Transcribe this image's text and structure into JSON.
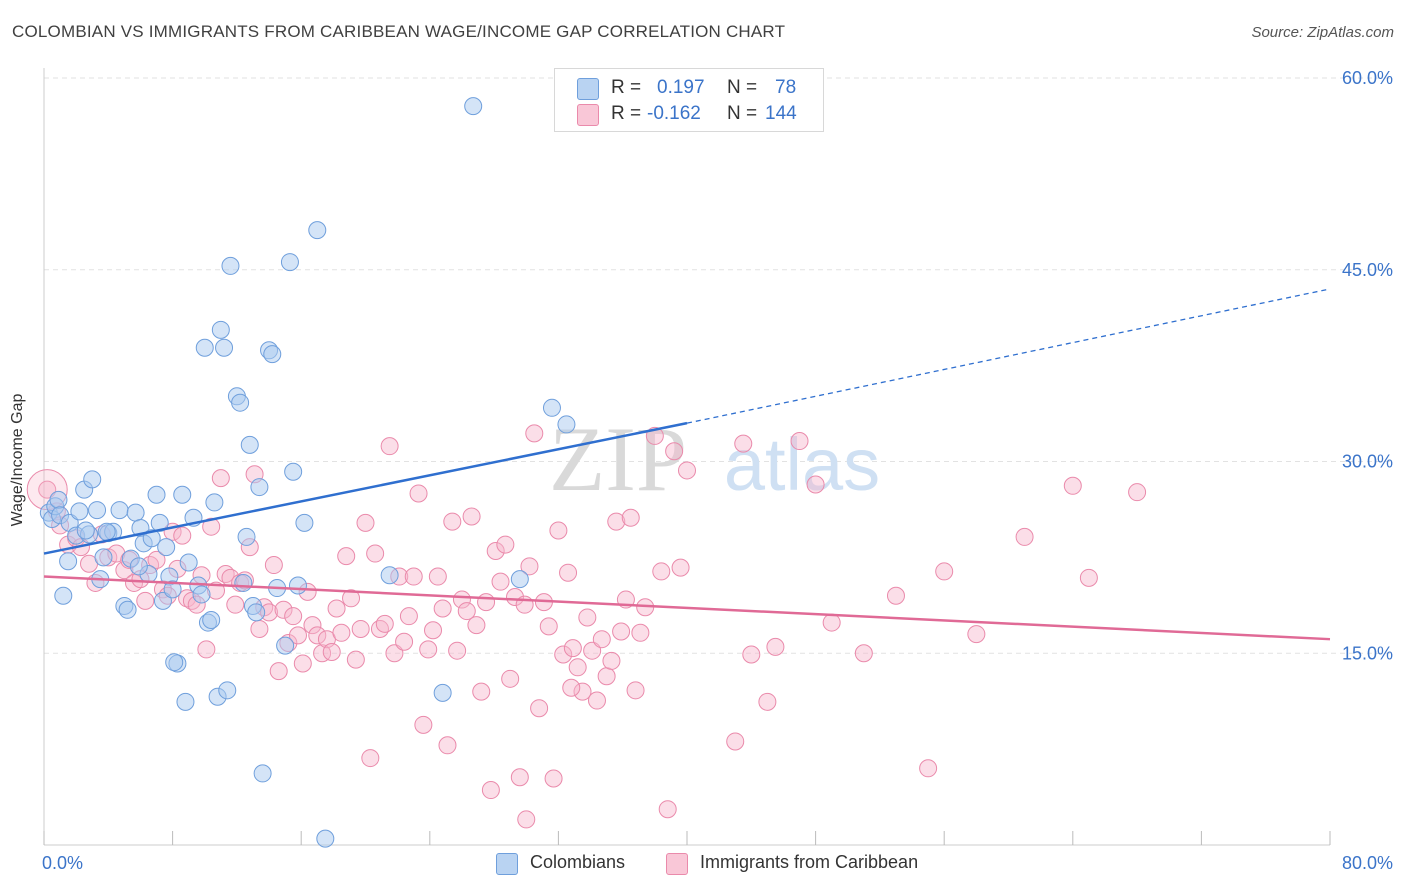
{
  "header": {
    "title": "COLOMBIAN VS IMMIGRANTS FROM CARIBBEAN WAGE/INCOME GAP CORRELATION CHART",
    "source": "Source: ZipAtlas.com"
  },
  "legend": {
    "rows": [
      {
        "r_label": "R =",
        "r_value": "0.197",
        "n_label": "N =",
        "n_value": "78"
      },
      {
        "r_label": "R =",
        "r_value": "-0.162",
        "n_label": "N =",
        "n_value": "144"
      }
    ],
    "bottom": [
      "Colombians",
      "Immigrants from Caribbean"
    ]
  },
  "watermark": {
    "zip": "ZIP",
    "atlas": "atlas"
  },
  "colors": {
    "blue_fill": "#a9c9f0",
    "blue_stroke": "#6f9fdc",
    "blue_line": "#2f6fcf",
    "pink_fill": "#f7b6cb",
    "pink_stroke": "#ea8aab",
    "pink_line": "#e06a96",
    "axis_text": "#3b74c9",
    "grid": "#e2e2e2"
  },
  "chart_data": {
    "type": "scatter",
    "title": "COLOMBIAN VS IMMIGRANTS FROM CARIBBEAN WAGE/INCOME GAP CORRELATION CHART",
    "xlabel": "",
    "ylabel": "Wage/Income Gap",
    "xlim": [
      0,
      80
    ],
    "ylim": [
      0,
      60
    ],
    "x_tick_labels": [
      "0.0%",
      "80.0%"
    ],
    "y_ticks": [
      15,
      30,
      45,
      60
    ],
    "y_tick_labels": [
      "15.0%",
      "30.0%",
      "45.0%",
      "60.0%"
    ],
    "grid": true,
    "legend_position": "top-center",
    "series": [
      {
        "name": "Colombians",
        "r": 0.197,
        "n": 78,
        "trend": {
          "x0": 0,
          "y0": 22.8,
          "x1": 40,
          "y1": 33.0,
          "dashed_to_x": 80,
          "dashed_to_y": 43.5
        },
        "points": [
          [
            0.3,
            26.0
          ],
          [
            0.5,
            25.5
          ],
          [
            0.7,
            26.5
          ],
          [
            0.9,
            27.0
          ],
          [
            1.0,
            25.8
          ],
          [
            1.2,
            19.5
          ],
          [
            1.5,
            22.2
          ],
          [
            1.6,
            25.2
          ],
          [
            2.0,
            24.2
          ],
          [
            2.2,
            26.1
          ],
          [
            2.5,
            27.8
          ],
          [
            2.8,
            24.3
          ],
          [
            3.0,
            28.6
          ],
          [
            3.3,
            26.2
          ],
          [
            3.5,
            20.8
          ],
          [
            3.7,
            22.5
          ],
          [
            4.0,
            24.4
          ],
          [
            4.3,
            24.5
          ],
          [
            4.7,
            26.2
          ],
          [
            5.0,
            18.7
          ],
          [
            5.2,
            18.4
          ],
          [
            5.4,
            22.4
          ],
          [
            5.7,
            26.0
          ],
          [
            6.0,
            24.8
          ],
          [
            6.2,
            23.6
          ],
          [
            6.5,
            21.2
          ],
          [
            6.7,
            24.0
          ],
          [
            7.0,
            27.4
          ],
          [
            7.2,
            25.2
          ],
          [
            7.4,
            19.1
          ],
          [
            7.6,
            23.3
          ],
          [
            7.8,
            21.0
          ],
          [
            8.0,
            20.0
          ],
          [
            8.3,
            14.2
          ],
          [
            8.6,
            27.4
          ],
          [
            8.8,
            11.2
          ],
          [
            9.0,
            22.1
          ],
          [
            9.3,
            25.6
          ],
          [
            9.6,
            20.3
          ],
          [
            9.8,
            19.6
          ],
          [
            10.0,
            38.9
          ],
          [
            10.2,
            17.4
          ],
          [
            10.4,
            17.6
          ],
          [
            10.6,
            26.8
          ],
          [
            10.8,
            11.6
          ],
          [
            11.0,
            40.3
          ],
          [
            11.2,
            38.9
          ],
          [
            11.4,
            12.1
          ],
          [
            11.6,
            45.3
          ],
          [
            12.0,
            35.1
          ],
          [
            12.2,
            34.6
          ],
          [
            12.4,
            20.5
          ],
          [
            12.6,
            24.1
          ],
          [
            12.8,
            31.3
          ],
          [
            13.0,
            18.7
          ],
          [
            13.2,
            18.2
          ],
          [
            13.4,
            28.0
          ],
          [
            13.6,
            5.6
          ],
          [
            14.0,
            38.7
          ],
          [
            14.2,
            38.4
          ],
          [
            14.5,
            20.1
          ],
          [
            15.0,
            15.6
          ],
          [
            15.3,
            45.6
          ],
          [
            15.5,
            29.2
          ],
          [
            15.8,
            20.3
          ],
          [
            16.2,
            25.2
          ],
          [
            17.0,
            48.1
          ],
          [
            17.5,
            0.5
          ],
          [
            8.1,
            14.3
          ],
          [
            5.9,
            21.8
          ],
          [
            3.9,
            24.5
          ],
          [
            2.6,
            24.6
          ],
          [
            21.5,
            21.1
          ],
          [
            24.8,
            11.9
          ],
          [
            26.7,
            57.8
          ],
          [
            29.6,
            20.8
          ],
          [
            31.6,
            34.2
          ],
          [
            32.5,
            32.9
          ]
        ]
      },
      {
        "name": "Immigrants from Caribbean",
        "r": -0.162,
        "n": 144,
        "trend": {
          "x0": 0,
          "y0": 21.0,
          "x1": 80,
          "y1": 16.1
        },
        "points": [
          [
            0.2,
            27.8
          ],
          [
            0.8,
            26.1
          ],
          [
            1.0,
            25.0
          ],
          [
            1.5,
            23.5
          ],
          [
            2.0,
            24.0
          ],
          [
            2.3,
            23.3
          ],
          [
            2.8,
            22.0
          ],
          [
            3.2,
            20.5
          ],
          [
            3.6,
            24.3
          ],
          [
            4.0,
            22.5
          ],
          [
            4.5,
            22.8
          ],
          [
            5.0,
            21.5
          ],
          [
            5.3,
            22.3
          ],
          [
            5.6,
            20.5
          ],
          [
            6.0,
            20.8
          ],
          [
            6.3,
            19.1
          ],
          [
            6.6,
            21.9
          ],
          [
            7.0,
            22.3
          ],
          [
            7.4,
            20.0
          ],
          [
            7.7,
            19.5
          ],
          [
            8.0,
            24.5
          ],
          [
            8.3,
            21.6
          ],
          [
            8.6,
            24.2
          ],
          [
            8.9,
            19.3
          ],
          [
            9.2,
            19.1
          ],
          [
            9.5,
            18.8
          ],
          [
            9.8,
            21.1
          ],
          [
            10.1,
            15.3
          ],
          [
            10.4,
            24.9
          ],
          [
            10.7,
            19.9
          ],
          [
            11.0,
            28.7
          ],
          [
            11.3,
            21.2
          ],
          [
            11.6,
            20.9
          ],
          [
            11.9,
            18.8
          ],
          [
            12.2,
            20.5
          ],
          [
            12.5,
            20.7
          ],
          [
            12.8,
            23.3
          ],
          [
            13.1,
            29.0
          ],
          [
            13.4,
            16.9
          ],
          [
            13.7,
            18.6
          ],
          [
            14.0,
            18.2
          ],
          [
            14.3,
            21.9
          ],
          [
            14.6,
            13.6
          ],
          [
            14.9,
            18.4
          ],
          [
            15.2,
            15.8
          ],
          [
            15.5,
            17.9
          ],
          [
            15.8,
            16.4
          ],
          [
            16.1,
            14.2
          ],
          [
            16.4,
            19.8
          ],
          [
            16.7,
            17.2
          ],
          [
            17.0,
            16.4
          ],
          [
            17.3,
            15.0
          ],
          [
            17.6,
            16.1
          ],
          [
            17.9,
            15.1
          ],
          [
            18.2,
            18.5
          ],
          [
            18.5,
            16.6
          ],
          [
            18.8,
            22.6
          ],
          [
            19.1,
            19.3
          ],
          [
            19.4,
            14.5
          ],
          [
            19.7,
            16.9
          ],
          [
            20.0,
            25.2
          ],
          [
            20.3,
            6.8
          ],
          [
            20.6,
            22.8
          ],
          [
            20.9,
            16.9
          ],
          [
            21.2,
            17.3
          ],
          [
            21.5,
            31.2
          ],
          [
            21.8,
            15.0
          ],
          [
            22.1,
            21.0
          ],
          [
            22.4,
            15.9
          ],
          [
            22.7,
            17.9
          ],
          [
            23.0,
            21.0
          ],
          [
            23.3,
            27.5
          ],
          [
            23.6,
            9.4
          ],
          [
            23.9,
            15.3
          ],
          [
            24.2,
            16.8
          ],
          [
            24.5,
            21.0
          ],
          [
            24.8,
            18.5
          ],
          [
            25.1,
            7.8
          ],
          [
            25.4,
            25.3
          ],
          [
            25.7,
            15.2
          ],
          [
            26.0,
            19.2
          ],
          [
            26.3,
            18.3
          ],
          [
            26.6,
            25.7
          ],
          [
            26.9,
            17.2
          ],
          [
            27.2,
            12.0
          ],
          [
            27.5,
            19.0
          ],
          [
            27.8,
            4.3
          ],
          [
            28.1,
            23.0
          ],
          [
            28.4,
            20.6
          ],
          [
            28.7,
            23.5
          ],
          [
            29.0,
            13.0
          ],
          [
            29.3,
            19.4
          ],
          [
            29.6,
            5.3
          ],
          [
            29.9,
            18.8
          ],
          [
            30.2,
            21.8
          ],
          [
            30.5,
            32.2
          ],
          [
            30.8,
            10.7
          ],
          [
            31.1,
            19.0
          ],
          [
            31.4,
            17.1
          ],
          [
            31.7,
            5.2
          ],
          [
            32.0,
            24.6
          ],
          [
            32.3,
            14.9
          ],
          [
            32.6,
            21.3
          ],
          [
            32.9,
            15.4
          ],
          [
            33.2,
            13.9
          ],
          [
            33.5,
            12.0
          ],
          [
            33.8,
            17.8
          ],
          [
            34.1,
            15.2
          ],
          [
            34.4,
            11.3
          ],
          [
            34.7,
            16.1
          ],
          [
            35.0,
            13.2
          ],
          [
            35.3,
            14.4
          ],
          [
            35.6,
            25.3
          ],
          [
            35.9,
            16.7
          ],
          [
            36.2,
            19.2
          ],
          [
            36.5,
            25.6
          ],
          [
            36.8,
            12.1
          ],
          [
            37.1,
            16.6
          ],
          [
            37.4,
            18.6
          ],
          [
            38.0,
            32.0
          ],
          [
            38.4,
            21.4
          ],
          [
            38.8,
            2.8
          ],
          [
            39.2,
            30.8
          ],
          [
            39.6,
            21.7
          ],
          [
            40.0,
            29.3
          ],
          [
            43.0,
            8.1
          ],
          [
            43.5,
            31.4
          ],
          [
            44.0,
            14.9
          ],
          [
            45.0,
            11.2
          ],
          [
            45.5,
            15.5
          ],
          [
            47.0,
            31.6
          ],
          [
            48.0,
            28.2
          ],
          [
            49.0,
            17.4
          ],
          [
            51.0,
            15.0
          ],
          [
            53.0,
            19.5
          ],
          [
            55.0,
            6.0
          ],
          [
            56.0,
            21.4
          ],
          [
            58.0,
            16.5
          ],
          [
            61.0,
            24.1
          ],
          [
            64.0,
            28.1
          ],
          [
            65.0,
            20.9
          ],
          [
            68.0,
            27.6
          ],
          [
            32.8,
            12.3
          ],
          [
            30.0,
            2.0
          ]
        ]
      }
    ]
  }
}
